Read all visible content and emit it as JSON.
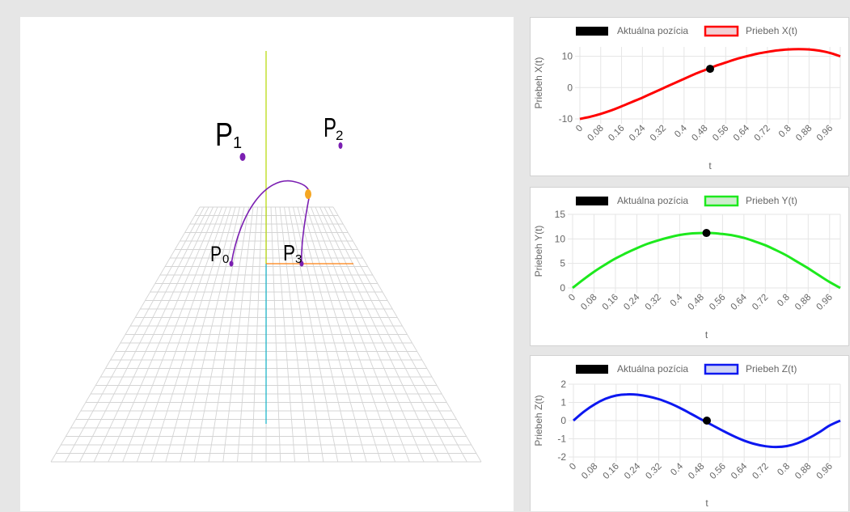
{
  "scene": {
    "points": [
      {
        "letter": "P",
        "index": "0"
      },
      {
        "letter": "P",
        "index": "1"
      },
      {
        "letter": "P",
        "index": "2"
      },
      {
        "letter": "P",
        "index": "3"
      }
    ],
    "colors": {
      "point": "#7b1fb2",
      "curve": "#7b1fb2",
      "marker": "#f5a623",
      "grid": "#d4d4d4",
      "axis_y": "#b5d900",
      "axis_x": "#ff7f0e",
      "axis_z": "#12b3c9"
    }
  },
  "chart_data": [
    {
      "type": "line",
      "legend": [
        "Aktuálna pozícia",
        "Priebeh X(t)"
      ],
      "ylabel": "Priebeh X(t)",
      "xlabel": "t",
      "ylim": [
        -10,
        13
      ],
      "yticks": [
        "10",
        "0",
        "-10"
      ],
      "xticks": [
        "0",
        "0.08",
        "0.16",
        "0.24",
        "0.32",
        "0.4",
        "0.48",
        "0.56",
        "0.64",
        "0.72",
        "0.8",
        "0.88",
        "0.96"
      ],
      "series_color": "#ff0000",
      "series_fill": "#f2d0d4",
      "x": [
        0,
        0.04,
        0.08,
        0.12,
        0.16,
        0.2,
        0.24,
        0.28,
        0.32,
        0.36,
        0.4,
        0.44,
        0.48,
        0.52,
        0.56,
        0.6,
        0.64,
        0.68,
        0.72,
        0.76,
        0.8,
        0.84,
        0.88,
        0.92,
        0.96,
        1.0
      ],
      "y": [
        -10,
        -9.3,
        -8.4,
        -7.3,
        -6,
        -4.6,
        -3.2,
        -1.7,
        -0.2,
        1.3,
        2.8,
        4.3,
        5.6,
        6.9,
        8,
        9.1,
        10,
        10.8,
        11.4,
        11.9,
        12.2,
        12.3,
        12.2,
        11.8,
        11.1,
        10
      ],
      "current": {
        "t": 0.5,
        "value": 6
      }
    },
    {
      "type": "line",
      "legend": [
        "Aktuálna pozícia",
        "Priebeh Y(t)"
      ],
      "ylabel": "Priebeh Y(t)",
      "xlabel": "t",
      "ylim": [
        0,
        15
      ],
      "yticks": [
        "15",
        "10",
        "5",
        "0"
      ],
      "xticks": [
        "0",
        "0.08",
        "0.16",
        "0.24",
        "0.32",
        "0.4",
        "0.48",
        "0.56",
        "0.64",
        "0.72",
        "0.8",
        "0.88",
        "0.96"
      ],
      "series_color": "#1de91d",
      "series_fill": "#cdeccd",
      "x": [
        0,
        0.04,
        0.08,
        0.12,
        0.16,
        0.2,
        0.24,
        0.28,
        0.32,
        0.36,
        0.4,
        0.44,
        0.48,
        0.52,
        0.56,
        0.6,
        0.64,
        0.68,
        0.72,
        0.76,
        0.8,
        0.84,
        0.88,
        0.92,
        0.96,
        1.0
      ],
      "y": [
        0,
        1.7,
        3.3,
        4.7,
        6,
        7.1,
        8.1,
        9,
        9.7,
        10.3,
        10.8,
        11.1,
        11.2,
        11.2,
        11,
        10.7,
        10.2,
        9.5,
        8.7,
        7.7,
        6.6,
        5.3,
        4,
        2.6,
        1.2,
        0
      ],
      "current": {
        "t": 0.5,
        "value": 11.2
      }
    },
    {
      "type": "line",
      "legend": [
        "Aktuálna pozícia",
        "Priebeh Z(t)"
      ],
      "ylabel": "Priebeh Z(t)",
      "xlabel": "t",
      "ylim": [
        -2,
        2
      ],
      "yticks": [
        "2",
        "1",
        "0",
        "-1",
        "-2"
      ],
      "xticks": [
        "0",
        "0.08",
        "0.16",
        "0.24",
        "0.32",
        "0.4",
        "0.48",
        "0.56",
        "0.64",
        "0.72",
        "0.8",
        "0.88",
        "0.96"
      ],
      "series_color": "#0d18f0",
      "series_fill": "#d0d4f4",
      "x": [
        0,
        0.04,
        0.08,
        0.12,
        0.16,
        0.2,
        0.24,
        0.28,
        0.32,
        0.36,
        0.4,
        0.44,
        0.48,
        0.52,
        0.56,
        0.6,
        0.64,
        0.68,
        0.72,
        0.76,
        0.8,
        0.84,
        0.88,
        0.92,
        0.96,
        1.0
      ],
      "y": [
        0,
        0.5,
        0.9,
        1.2,
        1.38,
        1.44,
        1.42,
        1.33,
        1.18,
        0.96,
        0.69,
        0.38,
        0.06,
        -0.25,
        -0.56,
        -0.85,
        -1.1,
        -1.29,
        -1.41,
        -1.45,
        -1.4,
        -1.24,
        -0.98,
        -0.65,
        -0.27,
        0
      ],
      "current": {
        "t": 0.5,
        "value": 0
      }
    }
  ]
}
